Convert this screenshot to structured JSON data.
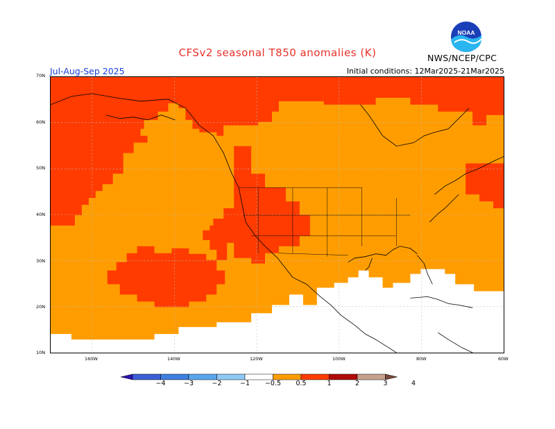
{
  "header": {
    "title": "CFSv2 seasonal T850 anomalies (K)",
    "title_color": "#e8312a",
    "period": "Jul-Aug-Sep 2025",
    "period_color": "#1a3ed8",
    "initial_conditions": "Initial conditions: 12Mar2025-21Mar2025",
    "agency": "NWS/NCEP/CPC",
    "logo_text": "NOAA"
  },
  "map": {
    "region": "North America",
    "projection": "cylindrical",
    "lat_labels": [
      "70N",
      "60N",
      "50N",
      "40N",
      "30N",
      "20N",
      "10N"
    ],
    "lon_labels": [
      "160W",
      "140W",
      "120W",
      "100W",
      "80W",
      "60W"
    ],
    "extent": {
      "lon": [
        170,
        60
      ],
      "lat": [
        10,
        70
      ]
    },
    "dominant_anomaly_classes": [
      "1 to 2",
      "0.5 to 1",
      "-0.5 to 0.5"
    ]
  },
  "legend": {
    "ticks": [
      "−4",
      "−3",
      "−2",
      "−1",
      "−0.5",
      "0.5",
      "1",
      "2",
      "3",
      "4"
    ],
    "colors": [
      "#2a14b0",
      "#3a5ed6",
      "#3f7fe0",
      "#5aa6ee",
      "#8ec8f5",
      "#ffffff",
      "#ff9d00",
      "#ff3b00",
      "#b00a08",
      "#c7a08e",
      "#7a4a3a"
    ]
  }
}
